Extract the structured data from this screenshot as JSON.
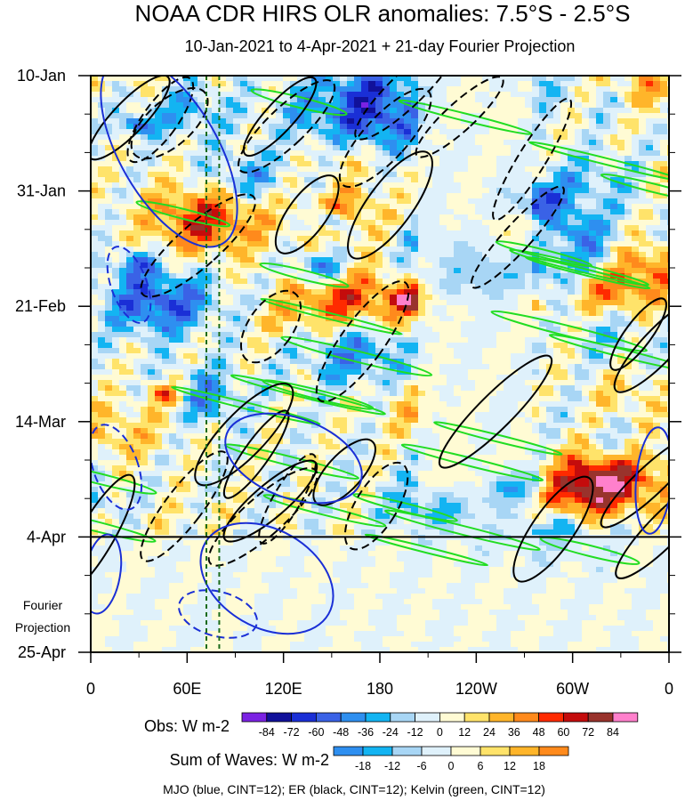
{
  "chart_data": {
    "type": "heatmap",
    "title": "NOAA CDR HIRS OLR anomalies: 7.5°S - 2.5°S",
    "subtitle": "10-Jan-2021 to 4-Apr-2021 + 21-day Fourier Projection",
    "x_axis": {
      "ticks": [
        "0",
        "60E",
        "120E",
        "180",
        "120W",
        "60W",
        "0"
      ],
      "tick_values": [
        0,
        60,
        120,
        180,
        240,
        300,
        360
      ],
      "range_deg": [
        0,
        360
      ]
    },
    "y_axis": {
      "ticks": [
        "10-Jan",
        "31-Jan",
        "21-Feb",
        "14-Mar",
        "4-Apr",
        "25-Apr"
      ],
      "tick_dates": [
        "2021-01-10",
        "2021-01-31",
        "2021-02-21",
        "2021-03-14",
        "2021-04-04",
        "2021-04-25"
      ],
      "range": [
        "2021-01-10",
        "2021-04-25"
      ],
      "direction": "time increases downward"
    },
    "projection_label": [
      "Fourier",
      "Projection"
    ],
    "projection_start": "2021-04-04",
    "reference_longitudes_deg": [
      72,
      80
    ],
    "obs_colorbar": {
      "label": "Obs: W m-2",
      "levels": [
        -84,
        -72,
        -60,
        -48,
        -36,
        -24,
        -12,
        0,
        12,
        24,
        36,
        48,
        60,
        72,
        84
      ],
      "colors": [
        "#7b22e3",
        "#11119a",
        "#1a2fd6",
        "#3a62e6",
        "#2e8ff0",
        "#13b4f2",
        "#a8d6f5",
        "#dff1fb",
        "#fffbd4",
        "#ffe36a",
        "#ffb52a",
        "#ff8a1c",
        "#ff2a00",
        "#c40c0c",
        "#99332c",
        "#ff80cc"
      ]
    },
    "waves_colorbar": {
      "label": "Sum of Waves: W m-2",
      "levels": [
        -18,
        -12,
        -6,
        0,
        6,
        12,
        18
      ],
      "colors": [
        "#2e8ff0",
        "#13b4f2",
        "#a8d6f5",
        "#dff1fb",
        "#fffbd4",
        "#ffe36a",
        "#ffb52a",
        "#ff8a1c"
      ]
    },
    "contour_legend": "MJO (blue, CINT=12); ER (black, CINT=12); Kelvin (green, CINT=12)",
    "contour_series": [
      {
        "name": "MJO",
        "color": "#1a2fd6"
      },
      {
        "name": "ER",
        "color": "#000000"
      },
      {
        "name": "Kelvin",
        "color": "#22dd22"
      }
    ]
  }
}
